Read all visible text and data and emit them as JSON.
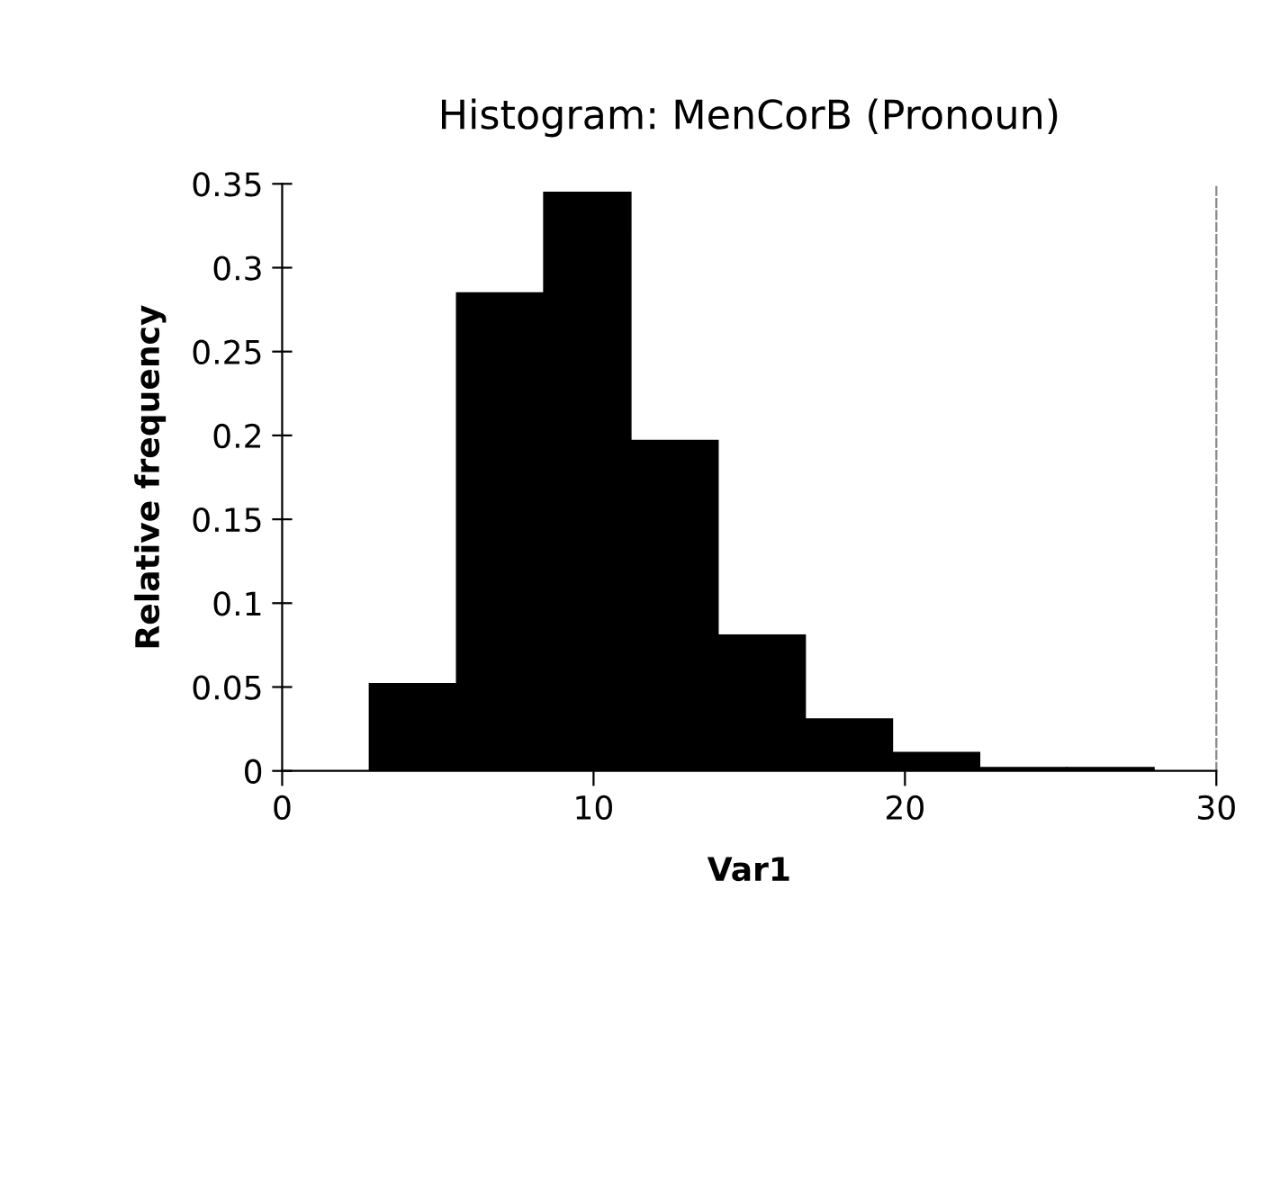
{
  "chart_data": {
    "type": "histogram",
    "title": "Histogram: MenCorB (Pronoun)",
    "xlabel": "Var1",
    "ylabel": "Relative frequency",
    "bins": [
      2.8,
      5.6,
      8.4,
      11.2,
      14.0,
      16.8,
      19.6,
      22.4,
      25.2,
      28.0
    ],
    "values": [
      0.052,
      0.285,
      0.345,
      0.197,
      0.081,
      0.031,
      0.011,
      0.002,
      0.002
    ],
    "color": "#000000",
    "xlim": [
      0,
      30
    ],
    "xticks": [
      0,
      10,
      20,
      30
    ],
    "ylim": [
      0,
      0.35
    ],
    "yticks": [
      0,
      0.05,
      0.1,
      0.15,
      0.2,
      0.25,
      0.3,
      0.35
    ],
    "grid": false,
    "legend": false
  }
}
